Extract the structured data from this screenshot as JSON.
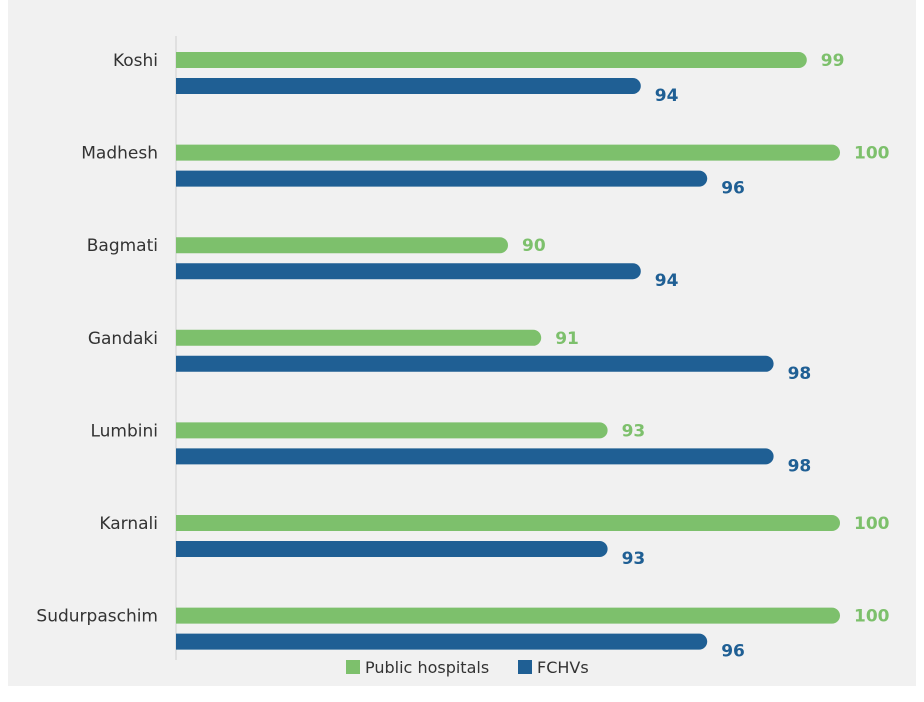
{
  "chart_data": {
    "type": "bar",
    "orientation": "horizontal",
    "title": "",
    "xlabel": "",
    "ylabel": "",
    "xlim": [
      80,
      100
    ],
    "grid": false,
    "legend_position": "bottom",
    "categories": [
      "Koshi",
      "Madhesh",
      "Bagmati",
      "Gandaki",
      "Lumbini",
      "Karnali",
      "Sudurpaschim"
    ],
    "series": [
      {
        "name": "Public hospitals",
        "color": "#7dc06c",
        "values": [
          99,
          100,
          90,
          91,
          93,
          100,
          100
        ]
      },
      {
        "name": "FCHVs",
        "color": "#1f5f94",
        "values": [
          94,
          96,
          94,
          98,
          98,
          93,
          96
        ]
      }
    ]
  }
}
